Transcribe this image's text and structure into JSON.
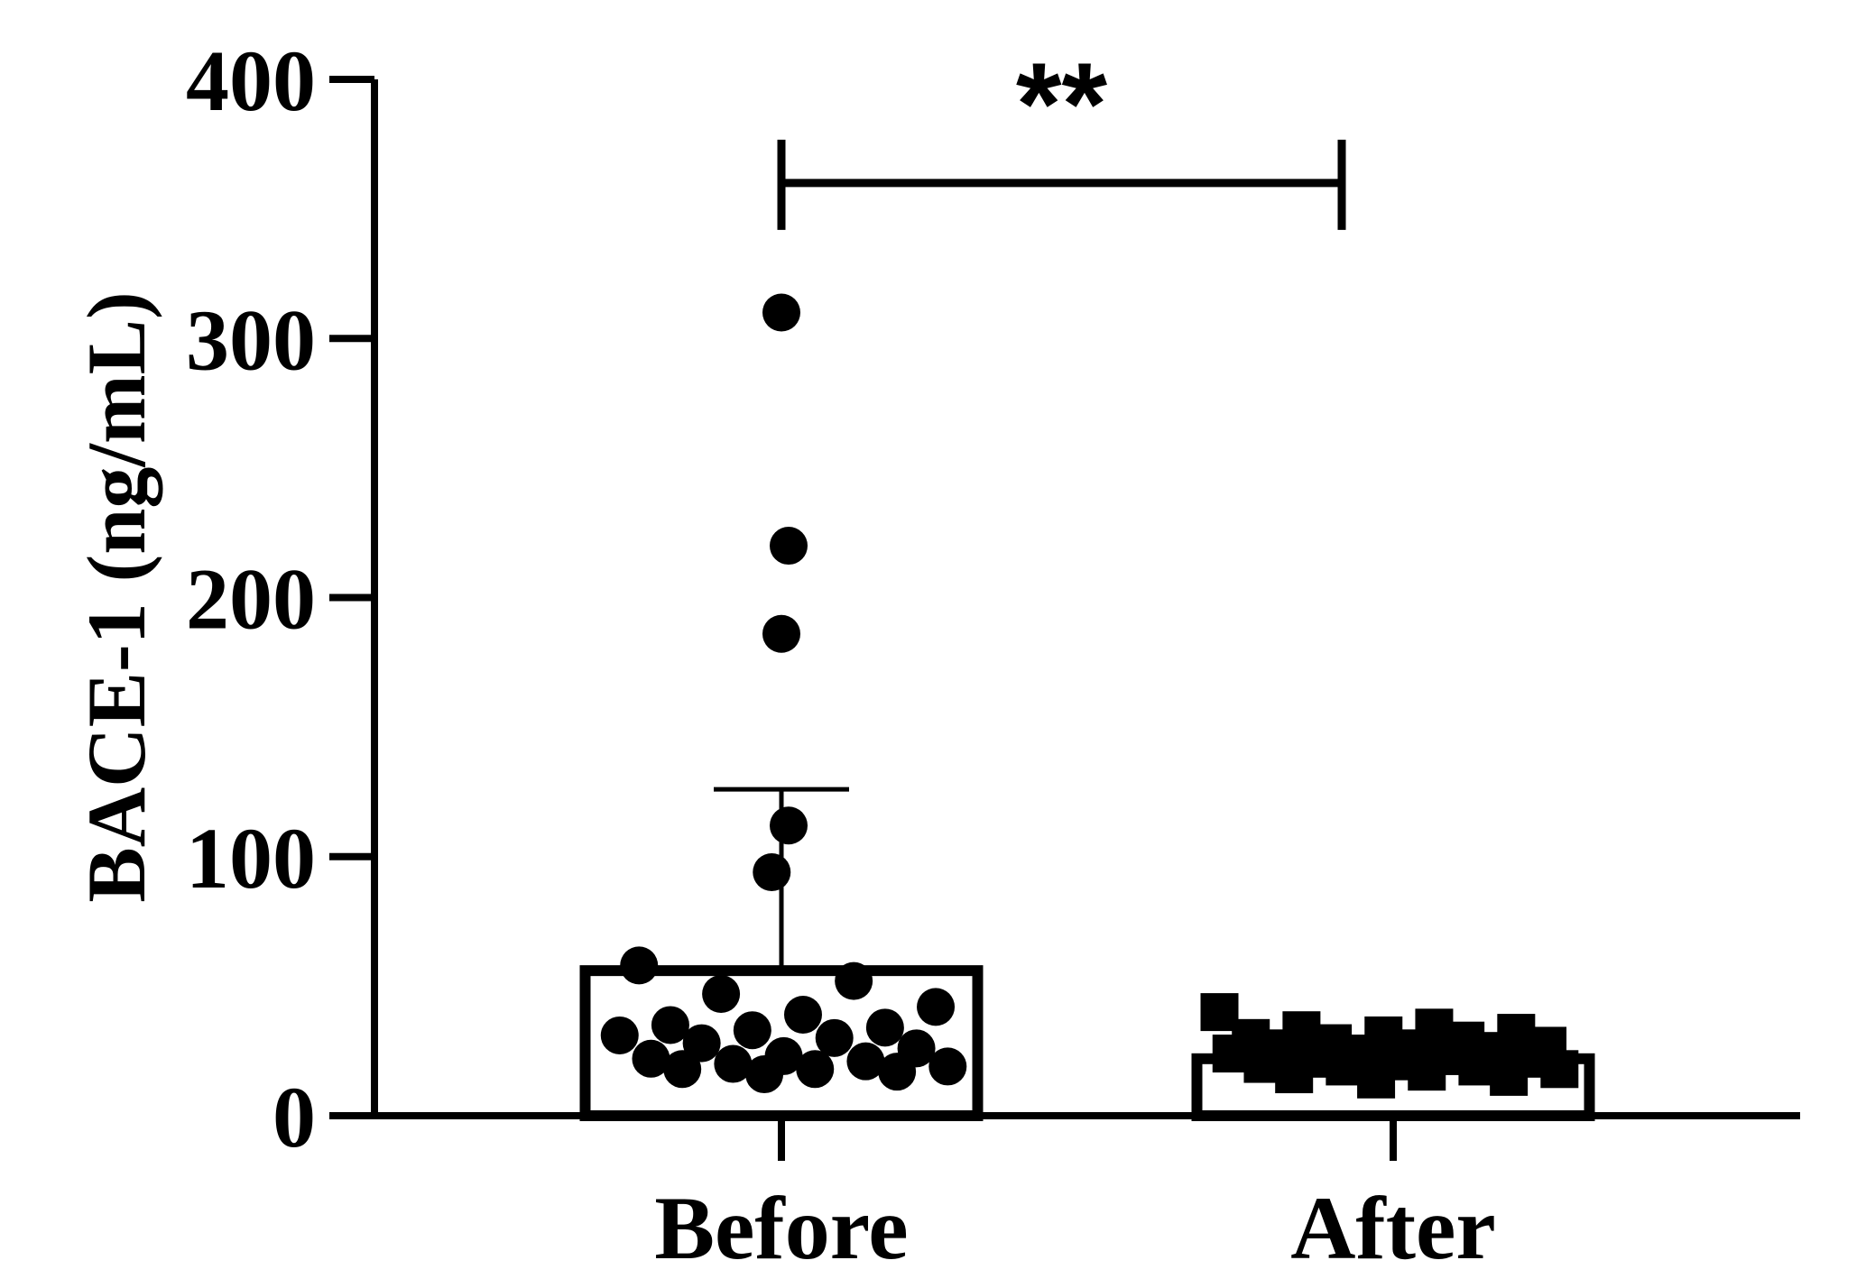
{
  "chart_data": {
    "type": "bar",
    "ylabel": "BACE-1 (ng/mL)",
    "xlabel": "",
    "ylim": [
      0,
      400
    ],
    "yticks": [
      0,
      100,
      200,
      300,
      400
    ],
    "categories": [
      "Before",
      "After"
    ],
    "values": [
      56,
      22
    ],
    "error_upper": [
      126,
      null
    ],
    "markers": [
      "circle",
      "square"
    ],
    "points": [
      [
        310,
        220,
        186,
        112,
        94,
        58,
        52,
        47,
        42,
        39,
        35,
        34,
        33,
        31,
        30,
        28,
        26,
        23,
        22,
        21,
        20,
        19,
        18,
        18,
        17,
        16
      ],
      [
        40,
        34,
        33,
        32,
        31,
        30,
        29,
        28,
        27,
        26,
        26,
        25,
        24,
        24,
        23,
        22,
        22,
        21,
        20,
        19,
        19,
        18,
        17,
        16,
        15,
        14
      ]
    ],
    "significance": {
      "between": [
        "Before",
        "After"
      ],
      "label": "**"
    },
    "colors": {
      "ink": "#000000",
      "bar_fill": "#ffffff"
    }
  }
}
